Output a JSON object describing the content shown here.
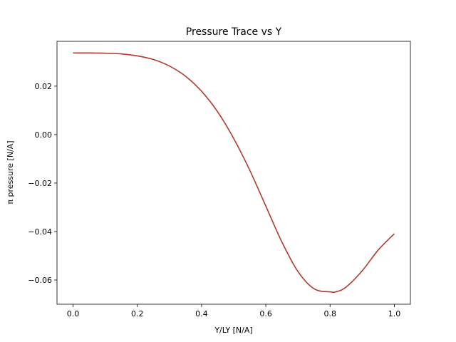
{
  "chart_data": {
    "type": "line",
    "title": "Pressure Trace vs Y",
    "xlabel": "Y/LY [N/A]",
    "ylabel": "π pressure [N/A]",
    "xlim": [
      -0.05,
      1.05
    ],
    "ylim": [
      -0.07,
      0.0385
    ],
    "grid": false,
    "legend": "none",
    "line_color": "#b03a2e",
    "x_ticks": [
      {
        "value": 0.0,
        "label": "0.0"
      },
      {
        "value": 0.2,
        "label": "0.2"
      },
      {
        "value": 0.4,
        "label": "0.4"
      },
      {
        "value": 0.6,
        "label": "0.6"
      },
      {
        "value": 0.8,
        "label": "0.8"
      },
      {
        "value": 1.0,
        "label": "1.0"
      }
    ],
    "y_ticks": [
      {
        "value": 0.02,
        "label": "0.02"
      },
      {
        "value": 0.0,
        "label": "0.00"
      },
      {
        "value": -0.02,
        "label": "−0.02"
      },
      {
        "value": -0.04,
        "label": "−0.04"
      },
      {
        "value": -0.06,
        "label": "−0.06"
      }
    ],
    "series": [
      {
        "x": [
          0.0,
          0.05,
          0.1,
          0.15,
          0.2,
          0.25,
          0.3,
          0.35,
          0.4,
          0.45,
          0.5,
          0.55,
          0.6,
          0.65,
          0.7,
          0.75,
          0.8,
          0.82,
          0.85,
          0.9,
          0.95,
          1.0
        ],
        "values": [
          0.0337,
          0.0337,
          0.0336,
          0.0333,
          0.0325,
          0.031,
          0.0283,
          0.0241,
          0.0179,
          0.0094,
          -0.0016,
          -0.0147,
          -0.0295,
          -0.0443,
          -0.0565,
          -0.0636,
          -0.0649,
          -0.0648,
          -0.0629,
          -0.0562,
          -0.0476,
          -0.0409
        ]
      }
    ]
  }
}
